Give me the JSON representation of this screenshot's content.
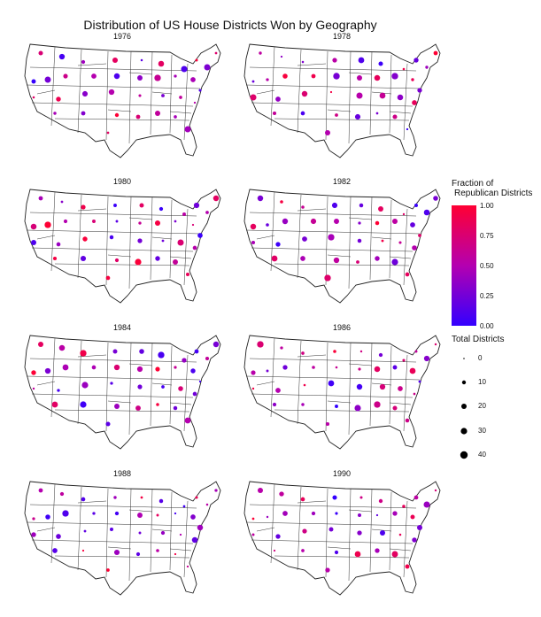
{
  "title": "Distribution of US House Districts Won by Geography",
  "legend": {
    "color_title_line1": "Fraction of",
    "color_title_line2": "Republican Districts",
    "color_ticks": [
      "1.00",
      "0.75",
      "0.50",
      "0.25",
      "0.00"
    ],
    "size_title": "Total Districts",
    "size_ticks": [
      "0",
      "10",
      "20",
      "30",
      "40"
    ]
  },
  "colors": {
    "low": "#3300ff",
    "mid": "#b400b0",
    "high": "#ff0033",
    "outline": "#222222"
  },
  "chart_data": [
    {
      "type": "scatter",
      "title": "1976",
      "encoding": "point per state: color = fraction Republican districts, size = total districts"
    },
    {
      "type": "scatter",
      "title": "1978",
      "encoding": "point per state: color = fraction Republican districts, size = total districts"
    },
    {
      "type": "scatter",
      "title": "1980",
      "encoding": "point per state: color = fraction Republican districts, size = total districts"
    },
    {
      "type": "scatter",
      "title": "1982",
      "encoding": "point per state: color = fraction Republican districts, size = total districts"
    },
    {
      "type": "scatter",
      "title": "1984",
      "encoding": "point per state: color = fraction Republican districts, size = total districts"
    },
    {
      "type": "scatter",
      "title": "1986",
      "encoding": "point per state: color = fraction Republican districts, size = total districts"
    },
    {
      "type": "scatter",
      "title": "1988",
      "encoding": "point per state: color = fraction Republican districts, size = total districts"
    },
    {
      "type": "scatter",
      "title": "1990",
      "encoding": "point per state: color = fraction Republican districts, size = total districts"
    }
  ]
}
